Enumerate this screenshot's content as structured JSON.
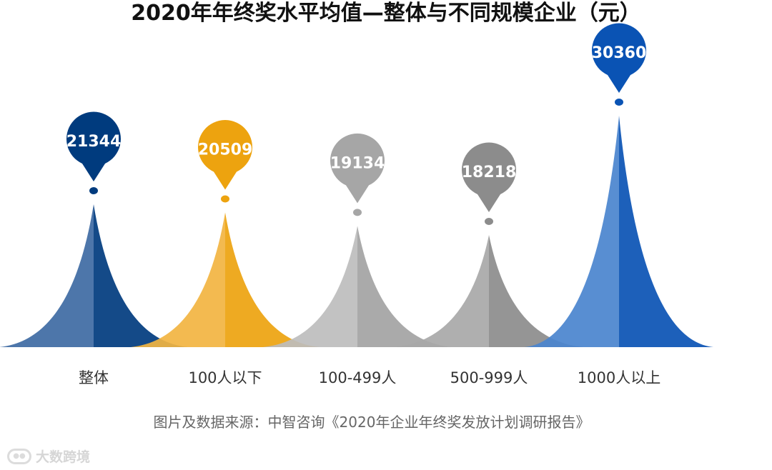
{
  "chart_data": {
    "type": "bar",
    "title": "2020年年终奖水平均值—整体与不同规模企业（元）",
    "categories": [
      "整体",
      "100人以下",
      "100-499人",
      "500-999人",
      "1000人以上"
    ],
    "values": [
      21344,
      20509,
      19134,
      18218,
      30360
    ],
    "colors": [
      {
        "light": "#3e6aa3",
        "dark": "#003b7e"
      },
      {
        "light": "#f2b441",
        "dark": "#eda30f"
      },
      {
        "light": "#bdbdbd",
        "dark": "#a3a3a3"
      },
      {
        "light": "#a8a8a8",
        "dark": "#8c8c8c"
      },
      {
        "light": "#4a84ce",
        "dark": "#0a53b4"
      }
    ],
    "pin_colors": [
      "#003b7e",
      "#eda30f",
      "#a6a6a6",
      "#8c8c8c",
      "#0a53b4"
    ],
    "source": "图片及数据来源：中智咨询《2020年企业年终奖发放计划调研报告》"
  },
  "watermark": {
    "icon": "logo-icon",
    "text": "大数跨境"
  }
}
